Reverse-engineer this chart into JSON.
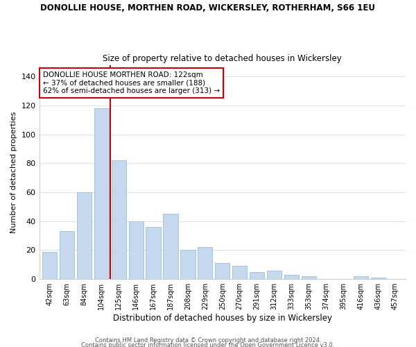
{
  "title": "DONOLLIE HOUSE, MORTHEN ROAD, WICKERSLEY, ROTHERHAM, S66 1EU",
  "subtitle": "Size of property relative to detached houses in Wickersley",
  "xlabel": "Distribution of detached houses by size in Wickersley",
  "ylabel": "Number of detached properties",
  "bar_color": "#c5d8ed",
  "bar_edge_color": "#a8c4de",
  "categories": [
    "42sqm",
    "63sqm",
    "84sqm",
    "104sqm",
    "125sqm",
    "146sqm",
    "167sqm",
    "187sqm",
    "208sqm",
    "229sqm",
    "250sqm",
    "270sqm",
    "291sqm",
    "312sqm",
    "333sqm",
    "353sqm",
    "374sqm",
    "395sqm",
    "416sqm",
    "436sqm",
    "457sqm"
  ],
  "values": [
    19,
    33,
    60,
    118,
    82,
    40,
    36,
    45,
    20,
    22,
    11,
    9,
    5,
    6,
    3,
    2,
    0,
    0,
    2,
    1,
    0
  ],
  "ylim": [
    0,
    148
  ],
  "yticks": [
    0,
    20,
    40,
    60,
    80,
    100,
    120,
    140
  ],
  "vline_x": 3.5,
  "vline_color": "#cc0000",
  "annotation_title": "DONOLLIE HOUSE MORTHEN ROAD: 122sqm",
  "annotation_line1": "← 37% of detached houses are smaller (188)",
  "annotation_line2": "62% of semi-detached houses are larger (313) →",
  "annotation_box_color": "#ffffff",
  "annotation_box_edge": "#cc0000",
  "footer1": "Contains HM Land Registry data © Crown copyright and database right 2024.",
  "footer2": "Contains public sector information licensed under the Open Government Licence v3.0.",
  "background_color": "#ffffff",
  "grid_color": "#d8e4f0"
}
